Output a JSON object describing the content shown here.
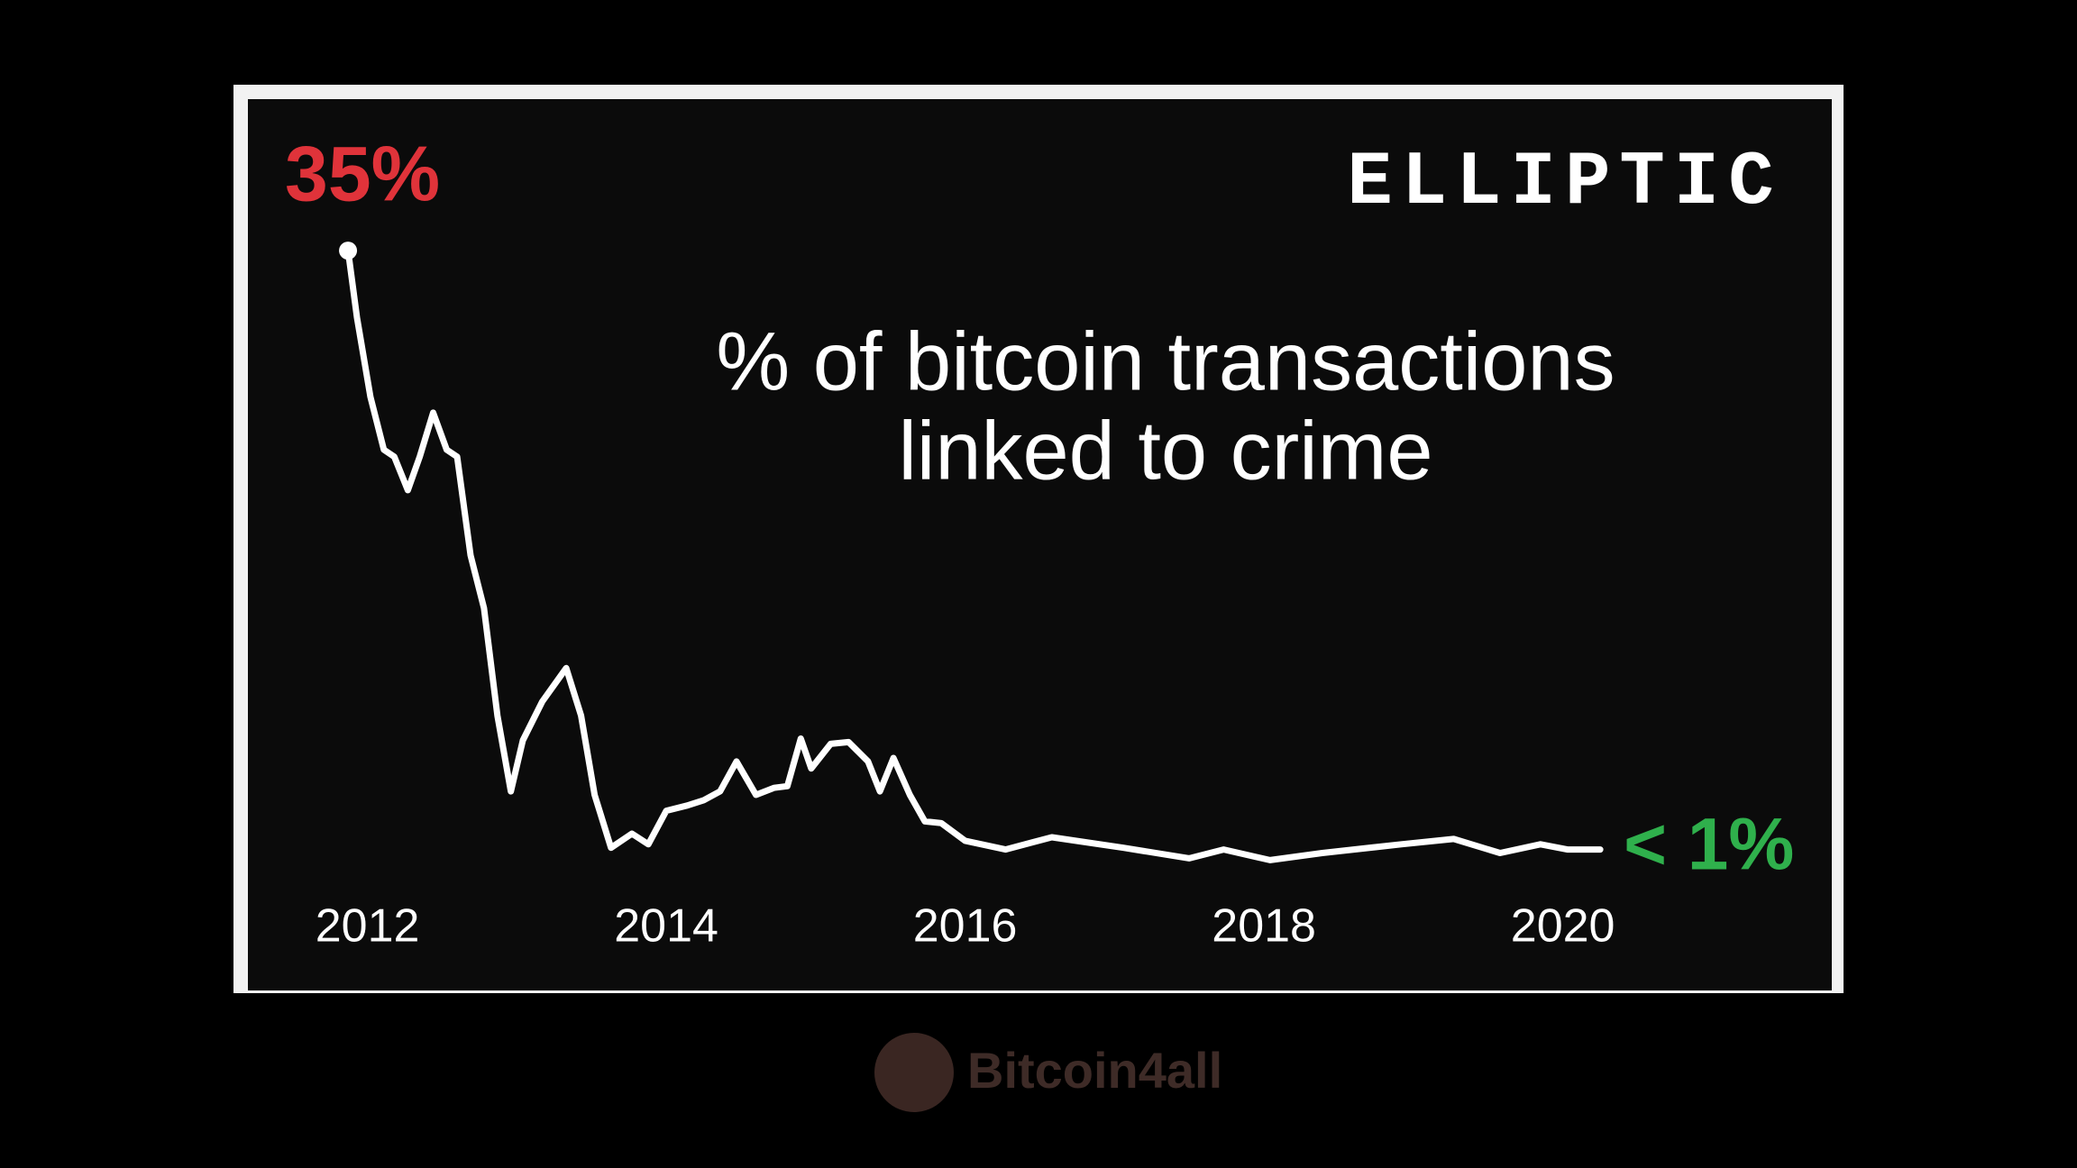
{
  "chart_data": {
    "type": "line",
    "title": [
      "% of bitcoin transactions",
      "linked to crime"
    ],
    "x": [
      2011.87,
      2011.93,
      2012.02,
      2012.11,
      2012.18,
      2012.27,
      2012.35,
      2012.44,
      2012.53,
      2012.6,
      2012.69,
      2012.78,
      2012.87,
      2012.96,
      2013.04,
      2013.17,
      2013.33,
      2013.43,
      2013.52,
      2013.63,
      2013.77,
      2013.88,
      2014.0,
      2014.14,
      2014.25,
      2014.36,
      2014.47,
      2014.6,
      2014.72,
      2014.81,
      2014.9,
      2014.97,
      2015.1,
      2015.22,
      2015.35,
      2015.43,
      2015.52,
      2015.63,
      2015.73,
      2015.84,
      2016.0,
      2016.27,
      2016.58,
      2017.06,
      2017.5,
      2017.73,
      2018.04,
      2018.39,
      2018.92,
      2019.27,
      2019.58,
      2019.85,
      2020.03,
      2020.25
    ],
    "values": [
      35.0,
      31.2,
      26.7,
      23.7,
      23.3,
      21.4,
      23.3,
      25.8,
      23.7,
      23.3,
      17.7,
      14.7,
      8.6,
      4.3,
      7.2,
      9.4,
      11.3,
      8.6,
      4.1,
      1.1,
      1.9,
      1.3,
      3.2,
      3.5,
      3.8,
      4.3,
      6.0,
      4.1,
      4.5,
      4.6,
      7.3,
      5.6,
      7.0,
      7.1,
      6.0,
      4.3,
      6.2,
      4.1,
      2.6,
      2.5,
      1.5,
      1.0,
      1.7,
      1.1,
      0.5,
      1.0,
      0.4,
      0.8,
      1.3,
      1.6,
      0.8,
      1.3,
      1.0,
      1.0
    ],
    "color": "#ffffff",
    "xlim": [
      2011.2,
      2021.8
    ],
    "xticks": [
      2012,
      2014,
      2016,
      2018,
      2020
    ],
    "ylim": [
      -7,
      43.6
    ],
    "annotations": [
      {
        "text": "35%",
        "color": "#e0333a"
      },
      {
        "text": "< 1%",
        "color": "#2fb04c"
      }
    ],
    "logo": "ELLIPTIC"
  },
  "watermark": "Bitcoin4all"
}
